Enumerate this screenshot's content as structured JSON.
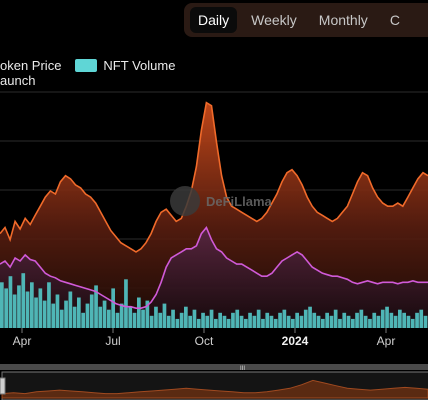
{
  "tabs": {
    "items": [
      {
        "label": "Daily"
      },
      {
        "label": "Weekly"
      },
      {
        "label": "Monthly"
      },
      {
        "label": "C"
      }
    ],
    "active": "Daily"
  },
  "legend": {
    "items": [
      {
        "label": "oken Price",
        "color": "#f06a2a"
      },
      {
        "label": "NFT Volume",
        "color": "#5fd6d6"
      }
    ],
    "second_line": "aunch"
  },
  "watermark": {
    "text": "DeFiLlama"
  },
  "colors": {
    "price": "#f06a2a",
    "purple": "#d05ad8",
    "volume": "#4fb6b6",
    "background": "#000000"
  },
  "chart_data": {
    "type": "area",
    "x_tick_labels": [
      "Apr",
      "Jul",
      "Oct",
      "2024",
      "Apr"
    ],
    "x_tick_bold": [
      false,
      false,
      false,
      true,
      false
    ],
    "series": [
      {
        "name": "oken Price",
        "type": "area",
        "values": [
          0.62,
          0.66,
          0.58,
          0.7,
          0.65,
          0.72,
          0.68,
          0.74,
          0.8,
          0.86,
          0.9,
          0.88,
          0.96,
          1.0,
          0.98,
          0.94,
          0.92,
          0.88,
          0.86,
          0.82,
          0.76,
          0.7,
          0.64,
          0.6,
          0.56,
          0.54,
          0.52,
          0.5,
          0.52,
          0.56,
          0.62,
          0.7,
          0.76,
          0.78,
          0.74,
          0.7,
          0.72,
          0.8,
          0.9,
          1.06,
          1.3,
          1.48,
          1.46,
          1.22,
          1.0,
          0.86,
          0.8,
          0.78,
          0.76,
          0.74,
          0.72,
          0.7,
          0.72,
          0.76,
          0.82,
          0.88,
          0.96,
          1.02,
          1.04,
          1.0,
          0.94,
          0.86,
          0.8,
          0.76,
          0.74,
          0.72,
          0.7,
          0.72,
          0.76,
          0.8,
          0.88,
          0.96,
          1.02,
          1.0,
          0.92,
          0.86,
          0.82,
          0.8,
          0.8,
          0.82,
          0.8,
          0.86,
          0.92,
          0.98,
          1.02,
          1.0
        ]
      },
      {
        "name": "",
        "type": "line",
        "values": [
          0.42,
          0.44,
          0.4,
          0.46,
          0.44,
          0.48,
          0.45,
          0.44,
          0.4,
          0.36,
          0.34,
          0.33,
          0.31,
          0.3,
          0.29,
          0.28,
          0.27,
          0.26,
          0.25,
          0.24,
          0.22,
          0.2,
          0.18,
          0.16,
          0.15,
          0.14,
          0.14,
          0.13,
          0.13,
          0.14,
          0.17,
          0.22,
          0.3,
          0.4,
          0.46,
          0.48,
          0.5,
          0.52,
          0.52,
          0.54,
          0.62,
          0.66,
          0.58,
          0.52,
          0.5,
          0.46,
          0.44,
          0.42,
          0.42,
          0.4,
          0.38,
          0.36,
          0.34,
          0.34,
          0.36,
          0.4,
          0.44,
          0.46,
          0.48,
          0.5,
          0.48,
          0.44,
          0.4,
          0.38,
          0.36,
          0.35,
          0.34,
          0.34,
          0.33,
          0.32,
          0.3,
          0.29,
          0.3,
          0.31,
          0.3,
          0.29,
          0.3,
          0.3,
          0.3,
          0.29,
          0.3,
          0.3,
          0.31,
          0.3,
          0.3,
          0.3
        ]
      },
      {
        "name": "NFT Volume",
        "type": "bar",
        "values": [
          0.3,
          0.26,
          0.34,
          0.22,
          0.28,
          0.36,
          0.24,
          0.3,
          0.2,
          0.26,
          0.18,
          0.3,
          0.16,
          0.22,
          0.12,
          0.18,
          0.24,
          0.14,
          0.2,
          0.1,
          0.16,
          0.22,
          0.28,
          0.14,
          0.18,
          0.12,
          0.26,
          0.1,
          0.16,
          0.32,
          0.14,
          0.1,
          0.2,
          0.12,
          0.18,
          0.08,
          0.14,
          0.1,
          0.16,
          0.08,
          0.12,
          0.06,
          0.1,
          0.14,
          0.08,
          0.12,
          0.06,
          0.1,
          0.08,
          0.12,
          0.06,
          0.1,
          0.08,
          0.06,
          0.1,
          0.12,
          0.08,
          0.06,
          0.1,
          0.08,
          0.12,
          0.06,
          0.1,
          0.08,
          0.06,
          0.1,
          0.12,
          0.08,
          0.06,
          0.1,
          0.08,
          0.12,
          0.14,
          0.1,
          0.08,
          0.06,
          0.1,
          0.08,
          0.12,
          0.06,
          0.1,
          0.08,
          0.06,
          0.1,
          0.12,
          0.08,
          0.06,
          0.1,
          0.08,
          0.12,
          0.14,
          0.1,
          0.08,
          0.12,
          0.1,
          0.08,
          0.06,
          0.1,
          0.12,
          0.08
        ]
      }
    ],
    "navigator": {
      "handle_label": "III",
      "values": [
        0.1,
        0.12,
        0.1,
        0.14,
        0.16,
        0.18,
        0.16,
        0.14,
        0.12,
        0.1,
        0.1,
        0.12,
        0.14,
        0.16,
        0.18,
        0.2,
        0.22,
        0.2,
        0.18,
        0.16,
        0.14,
        0.12,
        0.12,
        0.14,
        0.18,
        0.22,
        0.3,
        0.4,
        0.34,
        0.28,
        0.22,
        0.2,
        0.18,
        0.2,
        0.22,
        0.24,
        0.22,
        0.2
      ]
    },
    "grid": true,
    "legend_position": "top-left"
  }
}
